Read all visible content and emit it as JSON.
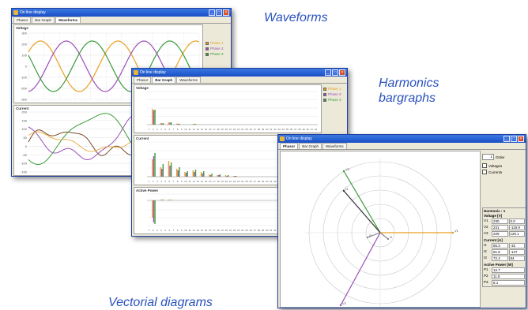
{
  "captions": {
    "waveforms": "Waveforms",
    "harmonics_line1": "Harmonics",
    "harmonics_line2": "bargraphs",
    "vectorial": "Vectorial diagrams"
  },
  "colors": {
    "phase1": "#e8a020",
    "phase2": "#9a4fb8",
    "phase3": "#3c9a3c",
    "accent": "#2a52be"
  },
  "waveforms_window": {
    "title": "On line display",
    "tabs": [
      "Phasor",
      "Bar Graph",
      "Waveforms"
    ],
    "active_tab": 2,
    "voltage_label": "Voltage",
    "current_label": "Current",
    "legend": [
      "Phase 1",
      "Phase 2",
      "Phase 3"
    ],
    "voltage_ticks": [
      "300",
      "200",
      "100",
      "0",
      "-100",
      "-200",
      "-300"
    ],
    "current_ticks": [
      "200",
      "150",
      "100",
      "50",
      "0",
      "-50",
      "-100",
      "-150"
    ]
  },
  "harmonics_window": {
    "title": "On line display",
    "tabs": [
      "Phasor",
      "Bar Graph",
      "Waveforms"
    ],
    "active_tab": 1,
    "voltage_label": "Voltage",
    "current_label": "Current",
    "power_label": "Active Power",
    "legend": [
      "Phase 1",
      "Phase 2",
      "Phase 3"
    ],
    "harmonic_numbers": [
      "1",
      "2",
      "3",
      "4",
      "5",
      "6",
      "7",
      "8",
      "9",
      "10",
      "11",
      "12",
      "13",
      "14",
      "15",
      "16",
      "17",
      "18",
      "19",
      "20",
      "21",
      "22",
      "23",
      "24",
      "25",
      "26",
      "27",
      "28",
      "29",
      "30",
      "31",
      "32",
      "33",
      "34",
      "35",
      "36",
      "37",
      "38",
      "39",
      "40",
      "41",
      "42"
    ]
  },
  "phasor_window": {
    "title": "On line display",
    "tabs": [
      "Phasor",
      "Bar Graph",
      "Waveforms"
    ],
    "active_tab": 0,
    "order_label": "Order",
    "order_value": "1",
    "checkbox1": "Voltages",
    "checkbox2": "Currents",
    "harmonic_header": "Harmonic : 1",
    "voltage_header": "Voltage [V]",
    "current_header": "Current [A]",
    "power_header": "Active Power [W]",
    "voltage_rows": [
      [
        "V1",
        "230",
        "0.0"
      ],
      [
        "V2",
        "231",
        "-119.9"
      ],
      [
        "V3",
        "229",
        "120.1"
      ]
    ],
    "current_rows": [
      [
        "I1",
        "65.3",
        "-32"
      ],
      [
        "I2",
        "61.8",
        "-147"
      ],
      [
        "I3",
        "72.4",
        "84"
      ]
    ],
    "power_rows": [
      [
        "P1",
        "12.7"
      ],
      [
        "P2",
        "11.9"
      ],
      [
        "P3",
        "8.1"
      ]
    ],
    "axis_labels": [
      "V1",
      "V2",
      "V3",
      "I1",
      "I2",
      "I3"
    ]
  }
}
